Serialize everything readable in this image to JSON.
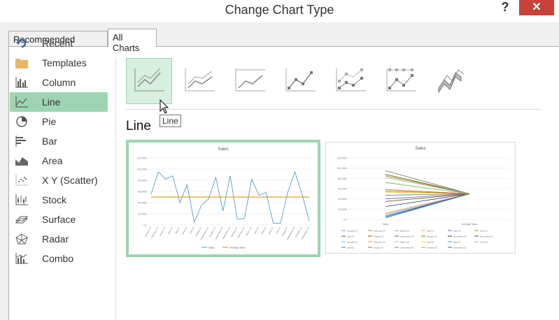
{
  "window": {
    "title": "Change Chart Type",
    "help": "?",
    "close": "✕"
  },
  "tabs": [
    {
      "label": "Recommended Charts"
    },
    {
      "label": "All Charts"
    }
  ],
  "categories": [
    {
      "label": "Recent",
      "icon": "recent-icon"
    },
    {
      "label": "Templates",
      "icon": "folder-icon"
    },
    {
      "label": "Column",
      "icon": "column-chart-icon"
    },
    {
      "label": "Line",
      "icon": "line-chart-icon"
    },
    {
      "label": "Pie",
      "icon": "pie-chart-icon"
    },
    {
      "label": "Bar",
      "icon": "bar-chart-icon"
    },
    {
      "label": "Area",
      "icon": "area-chart-icon"
    },
    {
      "label": "X Y (Scatter)",
      "icon": "scatter-chart-icon"
    },
    {
      "label": "Stock",
      "icon": "stock-chart-icon"
    },
    {
      "label": "Surface",
      "icon": "surface-chart-icon"
    },
    {
      "label": "Radar",
      "icon": "radar-chart-icon"
    },
    {
      "label": "Combo",
      "icon": "combo-chart-icon"
    }
  ],
  "selected_category": "Line",
  "section_heading": "Line",
  "tooltip": "Line",
  "chart_data": [
    {
      "type": "line",
      "title": "Sales",
      "categories": [
        "January-14",
        "February-14",
        "March-14",
        "April-14",
        "May-14",
        "June-14",
        "July-14",
        "August-14",
        "September-14",
        "October-14",
        "November-14",
        "December-14",
        "January-15",
        "February-15",
        "March-15",
        "April-15",
        "May-15",
        "June-15",
        "July-15",
        "August-15",
        "September-15",
        "October-15",
        "November-15"
      ],
      "series": [
        {
          "name": "Sales",
          "values": [
            55,
            95,
            82,
            88,
            40,
            72,
            5,
            35,
            47,
            85,
            25,
            88,
            10,
            12,
            82,
            53,
            58,
            3,
            3,
            58,
            95,
            55,
            7
          ]
        },
        {
          "name": "Average Sales",
          "values": [
            50,
            50,
            50,
            50,
            50,
            50,
            50,
            50,
            50,
            50,
            50,
            50,
            50,
            50,
            50,
            50,
            50,
            50,
            50,
            50,
            50,
            50,
            50
          ]
        }
      ],
      "ylim": [
        0,
        120
      ],
      "yticks": [
        "0.0",
        "20.0000",
        "40.0000",
        "60.0000",
        "80.0000",
        "100.0000",
        "120.0000"
      ]
    },
    {
      "type": "line",
      "title": "Sales",
      "categories": [
        "Sales",
        "Average Sales"
      ],
      "series": [
        {
          "name": "January-14",
          "values": [
            55,
            50
          ]
        },
        {
          "name": "February-14",
          "values": [
            95,
            50
          ]
        },
        {
          "name": "March-14",
          "values": [
            82,
            50
          ]
        },
        {
          "name": "April-14",
          "values": [
            88,
            50
          ]
        },
        {
          "name": "May-14",
          "values": [
            40,
            50
          ]
        },
        {
          "name": "June-14",
          "values": [
            72,
            50
          ]
        },
        {
          "name": "July-14",
          "values": [
            5,
            50
          ]
        },
        {
          "name": "August-14",
          "values": [
            35,
            50
          ]
        },
        {
          "name": "September-14",
          "values": [
            47,
            50
          ]
        },
        {
          "name": "October-14",
          "values": [
            85,
            50
          ]
        },
        {
          "name": "November-14",
          "values": [
            25,
            50
          ]
        },
        {
          "name": "December-14",
          "values": [
            88,
            50
          ]
        },
        {
          "name": "January-15",
          "values": [
            10,
            50
          ]
        },
        {
          "name": "February-15",
          "values": [
            12,
            50
          ]
        },
        {
          "name": "March-15",
          "values": [
            82,
            50
          ]
        },
        {
          "name": "April-15",
          "values": [
            53,
            50
          ]
        },
        {
          "name": "May-15",
          "values": [
            58,
            50
          ]
        },
        {
          "name": "June-15",
          "values": [
            3,
            50
          ]
        },
        {
          "name": "July-15",
          "values": [
            3,
            50
          ]
        },
        {
          "name": "August-15",
          "values": [
            58,
            50
          ]
        },
        {
          "name": "September-15",
          "values": [
            95,
            50
          ]
        },
        {
          "name": "October-15",
          "values": [
            55,
            50
          ]
        },
        {
          "name": "November-15",
          "values": [
            7,
            50
          ]
        }
      ],
      "ylim": [
        0,
        120
      ],
      "yticks": [
        "0.0",
        "20.0000",
        "40.0000",
        "60.0000",
        "80.0000",
        "100.0000",
        "120.0000"
      ]
    }
  ],
  "colors": {
    "selected": "#9fd4b2",
    "subtype_selected_bg": "#d6efdf",
    "series_sales": "#5b9bd5",
    "series_avg": "#d58b00"
  },
  "palette": [
    "#5b9bd5",
    "#ed7d31",
    "#a5a5a5",
    "#ffc000",
    "#4472c4",
    "#70ad47",
    "#255e91",
    "#9e480e",
    "#636363",
    "#997300",
    "#264478",
    "#43682b",
    "#7cafdd",
    "#f1975a",
    "#b7b7b7",
    "#ffcd33",
    "#698ed0",
    "#8cc168",
    "#327dc2",
    "#d26012",
    "#848484",
    "#cc9a00",
    "#335aa1"
  ]
}
